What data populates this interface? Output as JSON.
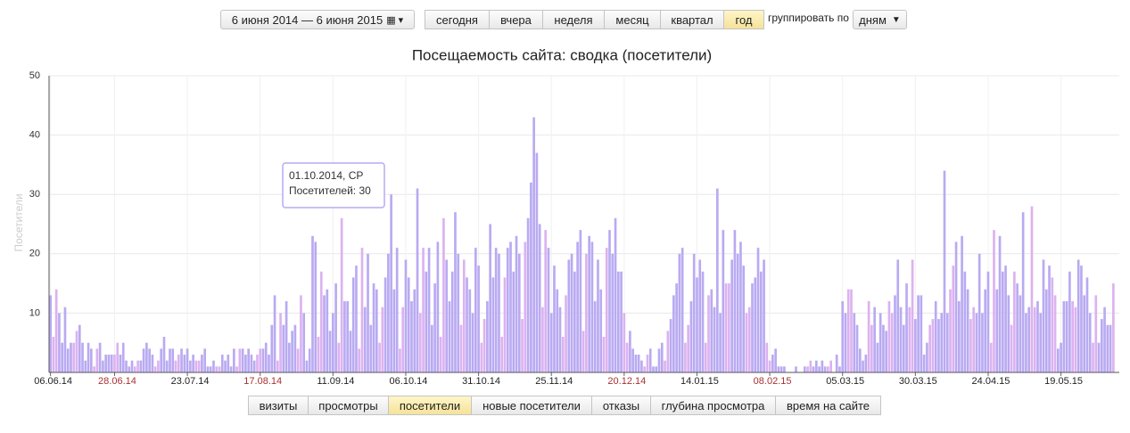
{
  "toolbar": {
    "date_range": "6 июня 2014 — 6 июня 2015",
    "periods": [
      "сегодня",
      "вчера",
      "неделя",
      "месяц",
      "квартал",
      "год"
    ],
    "active_period": 5,
    "group_label": "группировать по",
    "group_value": "дням"
  },
  "chart_data": {
    "type": "bar",
    "title": "Посещаемость сайта: сводка (посетители)",
    "y_label": "Посетители",
    "color": "#b9aaf2",
    "weekend_color": "#dcb2f0",
    "weekend_label_color": "#a83232",
    "grid": true,
    "ylim": [
      0,
      50
    ],
    "yticks": [
      10,
      20,
      30,
      40,
      50
    ],
    "categories": [
      "06.06.14",
      null,
      null,
      null,
      null,
      null,
      null,
      null,
      null,
      null,
      null,
      null,
      null,
      null,
      null,
      null,
      null,
      null,
      null,
      null,
      null,
      null,
      "28.06.14",
      null,
      null,
      null,
      null,
      null,
      null,
      null,
      null,
      null,
      null,
      null,
      null,
      null,
      null,
      null,
      null,
      null,
      null,
      null,
      null,
      null,
      null,
      null,
      null,
      "23.07.14",
      null,
      null,
      null,
      null,
      null,
      null,
      null,
      null,
      null,
      null,
      null,
      null,
      null,
      null,
      null,
      null,
      null,
      null,
      null,
      null,
      null,
      null,
      null,
      null,
      "17.08.14",
      null,
      null,
      null,
      null,
      null,
      null,
      null,
      null,
      null,
      null,
      null,
      null,
      null,
      null,
      null,
      null,
      null,
      null,
      null,
      null,
      null,
      null,
      null,
      null,
      "11.09.14",
      null,
      null,
      null,
      null,
      null,
      null,
      null,
      null,
      null,
      null,
      null,
      null,
      null,
      null,
      null,
      null,
      null,
      null,
      null,
      null,
      null,
      null,
      null,
      null,
      "06.10.14",
      null,
      null,
      null,
      null,
      null,
      null,
      null,
      null,
      null,
      null,
      null,
      null,
      null,
      null,
      null,
      null,
      null,
      null,
      null,
      null,
      null,
      null,
      null,
      null,
      "31.10.14",
      null,
      null,
      null,
      null,
      null,
      null,
      null,
      null,
      null,
      null,
      null,
      null,
      null,
      null,
      null,
      null,
      null,
      null,
      null,
      null,
      null,
      null,
      null,
      null,
      "25.11.14",
      null,
      null,
      null,
      null,
      null,
      null,
      null,
      null,
      null,
      null,
      null,
      null,
      null,
      null,
      null,
      null,
      null,
      null,
      null,
      null,
      null,
      null,
      null,
      null,
      "20.12.14",
      null,
      null,
      null,
      null,
      null,
      null,
      null,
      null,
      null,
      null,
      null,
      null,
      null,
      null,
      null,
      null,
      null,
      null,
      null,
      null,
      null,
      null,
      null,
      null,
      "14.01.15",
      null,
      null,
      null,
      null,
      null,
      null,
      null,
      null,
      null,
      null,
      null,
      null,
      null,
      null,
      null,
      null,
      null,
      null,
      null,
      null,
      null,
      null,
      null,
      null,
      "08.02.15",
      null,
      null,
      null,
      null,
      null,
      null,
      null,
      null,
      null,
      null,
      null,
      null,
      null,
      null,
      null,
      null,
      null,
      null,
      null,
      null,
      null,
      null,
      null,
      null,
      "05.03.15",
      null,
      null,
      null,
      null,
      null,
      null,
      null,
      null,
      null,
      null,
      null,
      null,
      null,
      null,
      null,
      null,
      null,
      null,
      null,
      null,
      null,
      null,
      null,
      null,
      "30.03.15",
      null,
      null,
      null,
      null,
      null,
      null,
      null,
      null,
      null,
      null,
      null,
      null,
      null,
      null,
      null,
      null,
      null,
      null,
      null,
      null,
      null,
      null,
      null,
      null,
      "24.04.15",
      null,
      null,
      null,
      null,
      null,
      null,
      null,
      null,
      null,
      null,
      null,
      null,
      null,
      null,
      null,
      null,
      null,
      null,
      null,
      null,
      null,
      null,
      null,
      null,
      "19.05.15",
      null,
      null,
      null,
      null,
      null,
      null,
      null,
      null,
      null,
      null,
      null,
      null,
      null,
      null,
      null,
      null,
      null,
      null
    ],
    "values": [
      13,
      6,
      14,
      10,
      5,
      11,
      4,
      5,
      5,
      7,
      8,
      5,
      2,
      5,
      4,
      1,
      4,
      5,
      2,
      3,
      3,
      3,
      3,
      5,
      3,
      5,
      2,
      1,
      2,
      1,
      2,
      2,
      4,
      5,
      4,
      3,
      1,
      2,
      4,
      6,
      2,
      4,
      4,
      2,
      3,
      4,
      3,
      4,
      2,
      3,
      2,
      2,
      3,
      4,
      1,
      1,
      2,
      1,
      1,
      3,
      2,
      3,
      1,
      4,
      1,
      4,
      4,
      3,
      4,
      3,
      2,
      3,
      4,
      4,
      5,
      3,
      8,
      13,
      2,
      10,
      8,
      12,
      5,
      7,
      8,
      4,
      13,
      10,
      2,
      4,
      23,
      22,
      6,
      17,
      13,
      14,
      7,
      10,
      15,
      5,
      26,
      12,
      12,
      7,
      16,
      18,
      4,
      21,
      11,
      20,
      8,
      15,
      14,
      5,
      11,
      16,
      20,
      30,
      14,
      21,
      4,
      11,
      19,
      16,
      12,
      14,
      31,
      10,
      21,
      17,
      21,
      8,
      15,
      22,
      6,
      26,
      19,
      12,
      17,
      27,
      20,
      8,
      19,
      16,
      14,
      10,
      21,
      18,
      5,
      9,
      12,
      25,
      16,
      21,
      20,
      6,
      16,
      21,
      22,
      17,
      23,
      20,
      9,
      22,
      26,
      32,
      43,
      37,
      25,
      11,
      24,
      21,
      10,
      18,
      14,
      11,
      6,
      13,
      19,
      20,
      17,
      22,
      24,
      7,
      20,
      23,
      22,
      12,
      19,
      14,
      6,
      21,
      24,
      20,
      26,
      17,
      17,
      10,
      5,
      7,
      4,
      3,
      3,
      2,
      1,
      3,
      4,
      1,
      1,
      4,
      5,
      2,
      7,
      9,
      13,
      15,
      20,
      21,
      5,
      8,
      12,
      20,
      16,
      19,
      17,
      5,
      13,
      14,
      11,
      31,
      10,
      24,
      15,
      15,
      19,
      24,
      20,
      22,
      18,
      10,
      11,
      15,
      16,
      21,
      17,
      19,
      5,
      2,
      3,
      4,
      1,
      1,
      1,
      0,
      0,
      0,
      1,
      0,
      0,
      1,
      1,
      2,
      1,
      2,
      1,
      2,
      1,
      1,
      2,
      0,
      3,
      1,
      12,
      10,
      14,
      14,
      10,
      8,
      4,
      2,
      3,
      12,
      8,
      11,
      5,
      10,
      8,
      7,
      12,
      10,
      13,
      19,
      11,
      8,
      15,
      11,
      19,
      9,
      13,
      13,
      3,
      5,
      8,
      9,
      12,
      9,
      10,
      34,
      10,
      14,
      18,
      22,
      12,
      23,
      17,
      14,
      9,
      11,
      10,
      20,
      10,
      14,
      17,
      5,
      24,
      14,
      23,
      17,
      18,
      13,
      8,
      17,
      15,
      13,
      27,
      10,
      11,
      28,
      11,
      12,
      10,
      19,
      14,
      18,
      16,
      13,
      4,
      5,
      12,
      12,
      17,
      12,
      11,
      19,
      18,
      13,
      16,
      10,
      5,
      13,
      5,
      9,
      11,
      8,
      8,
      15
    ],
    "tooltip": {
      "date": "01.10.2014, СР",
      "text": "Посетителей: 30"
    }
  },
  "tabs": {
    "items": [
      "визиты",
      "просмотры",
      "посетители",
      "новые посетители",
      "отказы",
      "глубина просмотра",
      "время на сайте"
    ],
    "active": 2
  }
}
